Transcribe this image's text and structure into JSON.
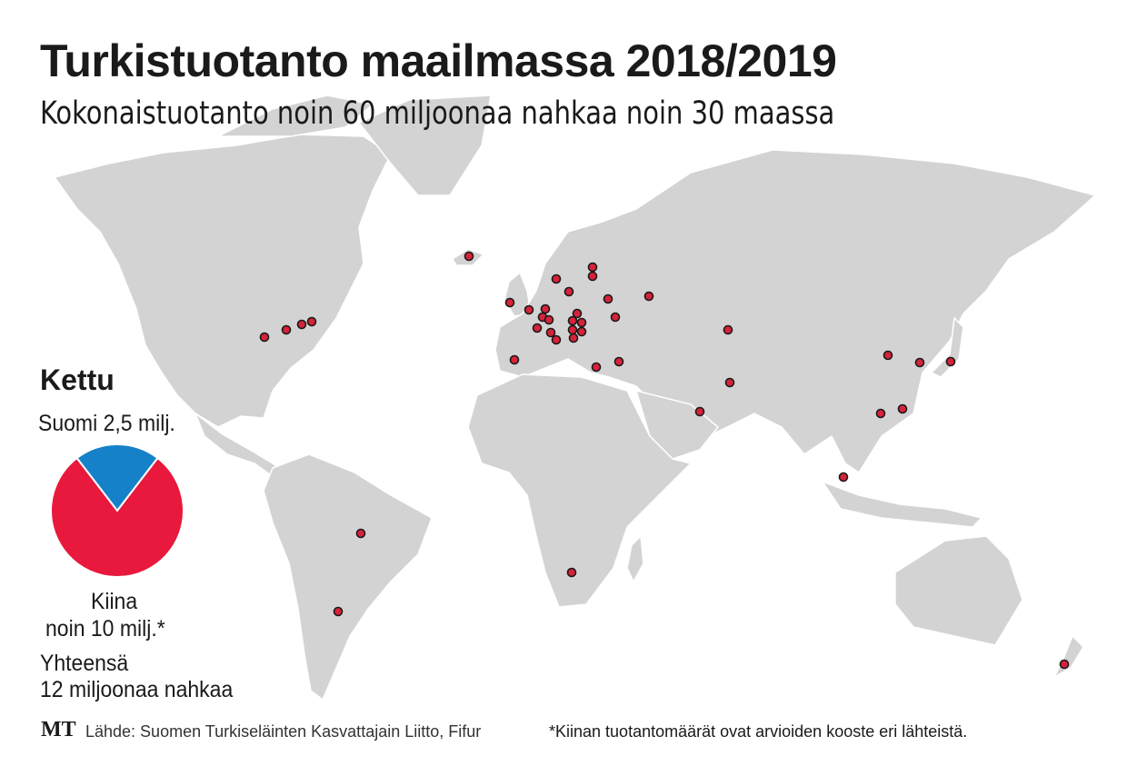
{
  "title": "Turkistuotanto maailmassa 2018/2019",
  "subtitle": "Kokonaistuotanto noin 60 miljoonaa nahkaa noin 30 maassa",
  "pie": {
    "heading": "Kettu",
    "finland_label": "Suomi 2,5 milj.",
    "china_label_1": "Kiina",
    "china_label_2": "noin 10 milj.*",
    "total_label_1": "Yhteensä",
    "total_label_2": "12 miljoonaa nahkaa"
  },
  "chart_data": {
    "type": "pie",
    "title": "Kettu",
    "slices": [
      {
        "name": "Suomi",
        "value": 2.5,
        "color": "#1581c9"
      },
      {
        "name": "Kiina",
        "value": 9.5,
        "color": "#e8193c"
      }
    ],
    "total": 12
  },
  "map": {
    "land_color": "#d3d3d3",
    "marker_color": "#d6223a",
    "marker_icon": "production-site-dot"
  },
  "footer": {
    "logo": "MT",
    "source": "Lähde: Suomen Turkiseläinten Kasvattajain Liitto, Fifur",
    "note": "*Kiinan tuotantomäärät ovat arvioiden kooste eri lähteistä."
  }
}
